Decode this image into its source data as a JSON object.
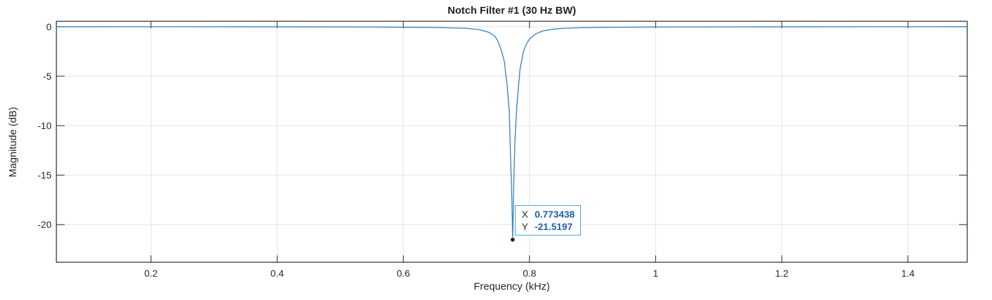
{
  "chart_data": {
    "type": "line",
    "title": "Notch Filter #1 (30 Hz BW)",
    "xlabel": "Frequency (kHz)",
    "ylabel": "Magnitude (dB)",
    "xlim": [
      0.05,
      1.494
    ],
    "ylim": [
      -23.8,
      0.55
    ],
    "grid": true,
    "x_ticks": [
      0.2,
      0.4,
      0.6,
      0.8,
      1,
      1.2,
      1.4
    ],
    "x_tick_labels": [
      "0.2",
      "0.4",
      "0.6",
      "0.8",
      "1",
      "1.2",
      "1.4"
    ],
    "y_ticks": [
      0,
      -5,
      -10,
      -15,
      -20
    ],
    "y_tick_labels": [
      "0",
      "-5",
      "-10",
      "-15",
      "-20"
    ],
    "line_color": "#2f7fc4",
    "series": [
      {
        "name": "Notch Filter #1",
        "x": [
          0.05,
          0.2,
          0.4,
          0.55,
          0.62,
          0.66,
          0.7,
          0.72,
          0.735,
          0.745,
          0.75,
          0.755,
          0.76,
          0.765,
          0.768,
          0.77,
          0.772,
          0.773438,
          0.775,
          0.777,
          0.78,
          0.785,
          0.79,
          0.795,
          0.8,
          0.81,
          0.82,
          0.835,
          0.85,
          0.88,
          0.92,
          1.0,
          1.2,
          1.4,
          1.494
        ],
        "y": [
          0,
          -0.005,
          -0.01,
          -0.03,
          -0.06,
          -0.09,
          -0.16,
          -0.28,
          -0.55,
          -0.95,
          -1.45,
          -2.3,
          -3.47,
          -6.15,
          -8.6,
          -13.0,
          -17.2,
          -21.5197,
          -16.0,
          -11.5,
          -7.97,
          -4.3,
          -2.64,
          -1.75,
          -1.24,
          -0.72,
          -0.45,
          -0.27,
          -0.18,
          -0.1,
          -0.06,
          -0.03,
          -0.01,
          -0.005,
          0
        ]
      }
    ],
    "annotations": [
      {
        "type": "datatip",
        "x_label": "X",
        "x_value": "0.773438",
        "y_label": "Y",
        "y_value": "-21.5197",
        "x": 0.773438,
        "y": -21.5197
      }
    ]
  }
}
